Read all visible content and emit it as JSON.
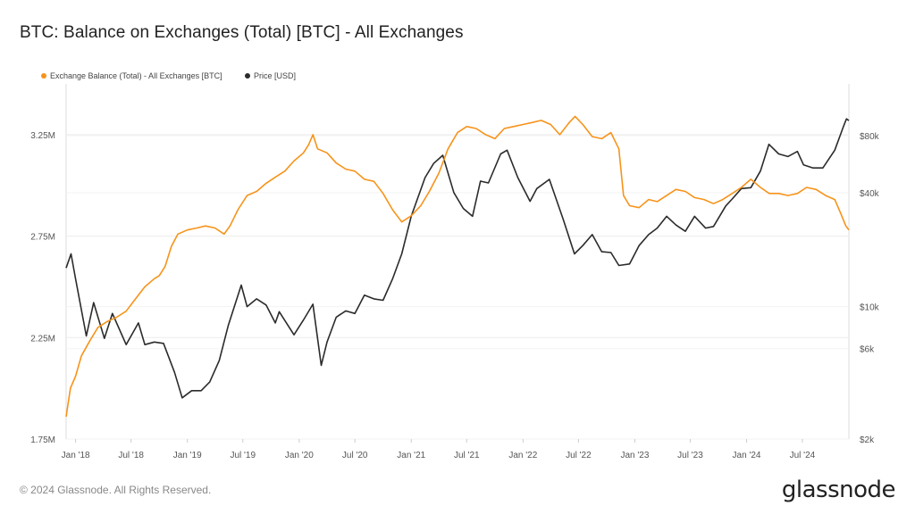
{
  "header": {
    "title": "BTC: Balance on Exchanges (Total) [BTC] - All Exchanges"
  },
  "footer": {
    "copyright": "© 2024 Glassnode. All Rights Reserved.",
    "logo_text": "glassnode"
  },
  "colors": {
    "balance": "#f7931a",
    "price": "#2b2b2b",
    "grid": "#ececec"
  },
  "chart_data": {
    "type": "line",
    "x_range": [
      "2017-12-01",
      "2024-11-30"
    ],
    "x_ticks": [
      {
        "date": "2018-01-01",
        "label": "Jan '18"
      },
      {
        "date": "2018-07-01",
        "label": "Jul '18"
      },
      {
        "date": "2019-01-01",
        "label": "Jan '19"
      },
      {
        "date": "2019-07-01",
        "label": "Jul '19"
      },
      {
        "date": "2020-01-01",
        "label": "Jan '20"
      },
      {
        "date": "2020-07-01",
        "label": "Jul '20"
      },
      {
        "date": "2021-01-01",
        "label": "Jan '21"
      },
      {
        "date": "2021-07-01",
        "label": "Jul '21"
      },
      {
        "date": "2022-01-01",
        "label": "Jan '22"
      },
      {
        "date": "2022-07-01",
        "label": "Jul '22"
      },
      {
        "date": "2023-01-01",
        "label": "Jan '23"
      },
      {
        "date": "2023-07-01",
        "label": "Jul '23"
      },
      {
        "date": "2024-01-01",
        "label": "Jan '24"
      },
      {
        "date": "2024-07-01",
        "label": "Jul '24"
      }
    ],
    "y_left": {
      "min": 1750000,
      "max": 3500000,
      "ticks": [
        {
          "value": 1750000,
          "label": "1.75M"
        },
        {
          "value": 2250000,
          "label": "2.25M"
        },
        {
          "value": 2750000,
          "label": "2.75M"
        },
        {
          "value": 3250000,
          "label": "3.25M"
        }
      ]
    },
    "y_right": {
      "scale": "log",
      "min": 2000,
      "max": 150000,
      "ticks": [
        {
          "value": 2000,
          "label": "$2k"
        },
        {
          "value": 6000,
          "label": "$6k"
        },
        {
          "value": 10000,
          "label": "$10k"
        },
        {
          "value": 40000,
          "label": "$40k"
        },
        {
          "value": 80000,
          "label": "$80k"
        }
      ]
    },
    "legend_position": "top-left",
    "series": [
      {
        "name": "Exchange Balance (Total) - All Exchanges [BTC]",
        "axis": "left",
        "color": "#f7931a",
        "points": [
          [
            "2017-12-01",
            1860000
          ],
          [
            "2017-12-15",
            2000000
          ],
          [
            "2018-01-01",
            2060000
          ],
          [
            "2018-01-20",
            2160000
          ],
          [
            "2018-02-15",
            2230000
          ],
          [
            "2018-03-15",
            2300000
          ],
          [
            "2018-04-15",
            2330000
          ],
          [
            "2018-05-15",
            2350000
          ],
          [
            "2018-06-15",
            2380000
          ],
          [
            "2018-07-15",
            2440000
          ],
          [
            "2018-08-15",
            2500000
          ],
          [
            "2018-09-15",
            2540000
          ],
          [
            "2018-10-01",
            2555000
          ],
          [
            "2018-10-20",
            2600000
          ],
          [
            "2018-11-10",
            2700000
          ],
          [
            "2018-12-01",
            2760000
          ],
          [
            "2019-01-01",
            2780000
          ],
          [
            "2019-02-01",
            2790000
          ],
          [
            "2019-03-01",
            2800000
          ],
          [
            "2019-04-01",
            2790000
          ],
          [
            "2019-05-01",
            2760000
          ],
          [
            "2019-05-20",
            2800000
          ],
          [
            "2019-06-15",
            2880000
          ],
          [
            "2019-07-15",
            2950000
          ],
          [
            "2019-08-15",
            2970000
          ],
          [
            "2019-09-15",
            3010000
          ],
          [
            "2019-10-15",
            3040000
          ],
          [
            "2019-11-15",
            3070000
          ],
          [
            "2019-12-15",
            3120000
          ],
          [
            "2020-01-15",
            3160000
          ],
          [
            "2020-02-01",
            3200000
          ],
          [
            "2020-02-15",
            3250000
          ],
          [
            "2020-03-01",
            3180000
          ],
          [
            "2020-04-01",
            3160000
          ],
          [
            "2020-05-01",
            3110000
          ],
          [
            "2020-06-01",
            3080000
          ],
          [
            "2020-07-01",
            3070000
          ],
          [
            "2020-08-01",
            3030000
          ],
          [
            "2020-09-01",
            3020000
          ],
          [
            "2020-10-01",
            2960000
          ],
          [
            "2020-11-01",
            2880000
          ],
          [
            "2020-12-01",
            2820000
          ],
          [
            "2021-01-01",
            2850000
          ],
          [
            "2021-02-01",
            2900000
          ],
          [
            "2021-03-01",
            2970000
          ],
          [
            "2021-04-01",
            3060000
          ],
          [
            "2021-05-01",
            3180000
          ],
          [
            "2021-06-01",
            3260000
          ],
          [
            "2021-07-01",
            3290000
          ],
          [
            "2021-08-01",
            3280000
          ],
          [
            "2021-09-01",
            3250000
          ],
          [
            "2021-10-01",
            3230000
          ],
          [
            "2021-11-01",
            3280000
          ],
          [
            "2021-12-01",
            3290000
          ],
          [
            "2022-01-01",
            3300000
          ],
          [
            "2022-02-01",
            3310000
          ],
          [
            "2022-03-01",
            3320000
          ],
          [
            "2022-04-01",
            3300000
          ],
          [
            "2022-05-01",
            3250000
          ],
          [
            "2022-06-01",
            3310000
          ],
          [
            "2022-06-20",
            3340000
          ],
          [
            "2022-07-15",
            3300000
          ],
          [
            "2022-08-15",
            3240000
          ],
          [
            "2022-09-15",
            3230000
          ],
          [
            "2022-10-15",
            3260000
          ],
          [
            "2022-11-10",
            3180000
          ],
          [
            "2022-11-25",
            2950000
          ],
          [
            "2022-12-15",
            2900000
          ],
          [
            "2023-01-15",
            2890000
          ],
          [
            "2023-02-15",
            2930000
          ],
          [
            "2023-03-15",
            2920000
          ],
          [
            "2023-04-15",
            2950000
          ],
          [
            "2023-05-15",
            2980000
          ],
          [
            "2023-06-15",
            2970000
          ],
          [
            "2023-07-15",
            2940000
          ],
          [
            "2023-08-15",
            2930000
          ],
          [
            "2023-09-15",
            2910000
          ],
          [
            "2023-10-15",
            2930000
          ],
          [
            "2023-11-15",
            2960000
          ],
          [
            "2023-12-15",
            2990000
          ],
          [
            "2024-01-15",
            3030000
          ],
          [
            "2024-02-15",
            2990000
          ],
          [
            "2024-03-15",
            2960000
          ],
          [
            "2024-04-15",
            2960000
          ],
          [
            "2024-05-15",
            2950000
          ],
          [
            "2024-06-15",
            2960000
          ],
          [
            "2024-07-15",
            2990000
          ],
          [
            "2024-08-15",
            2980000
          ],
          [
            "2024-09-15",
            2950000
          ],
          [
            "2024-10-15",
            2930000
          ],
          [
            "2024-11-01",
            2870000
          ],
          [
            "2024-11-20",
            2800000
          ],
          [
            "2024-11-30",
            2780000
          ]
        ]
      },
      {
        "name": "Price [USD]",
        "axis": "right",
        "color": "#2b2b2b",
        "points": [
          [
            "2017-12-01",
            16000
          ],
          [
            "2017-12-17",
            19000
          ],
          [
            "2018-01-01",
            14000
          ],
          [
            "2018-02-05",
            7000
          ],
          [
            "2018-03-01",
            10500
          ],
          [
            "2018-04-05",
            6800
          ],
          [
            "2018-05-01",
            9200
          ],
          [
            "2018-06-15",
            6300
          ],
          [
            "2018-07-25",
            8200
          ],
          [
            "2018-08-15",
            6300
          ],
          [
            "2018-09-15",
            6500
          ],
          [
            "2018-10-15",
            6400
          ],
          [
            "2018-11-20",
            4500
          ],
          [
            "2018-12-15",
            3300
          ],
          [
            "2019-01-15",
            3600
          ],
          [
            "2019-02-15",
            3600
          ],
          [
            "2019-03-15",
            4000
          ],
          [
            "2019-04-15",
            5200
          ],
          [
            "2019-05-15",
            8000
          ],
          [
            "2019-06-26",
            13000
          ],
          [
            "2019-07-15",
            10000
          ],
          [
            "2019-08-15",
            11000
          ],
          [
            "2019-09-15",
            10200
          ],
          [
            "2019-10-15",
            8200
          ],
          [
            "2019-10-28",
            9400
          ],
          [
            "2019-12-15",
            7100
          ],
          [
            "2020-01-15",
            8500
          ],
          [
            "2020-02-15",
            10300
          ],
          [
            "2020-03-13",
            4900
          ],
          [
            "2020-04-01",
            6500
          ],
          [
            "2020-05-01",
            8800
          ],
          [
            "2020-06-01",
            9500
          ],
          [
            "2020-07-01",
            9200
          ],
          [
            "2020-08-01",
            11500
          ],
          [
            "2020-09-01",
            11000
          ],
          [
            "2020-10-01",
            10800
          ],
          [
            "2020-11-01",
            14000
          ],
          [
            "2020-12-01",
            19000
          ],
          [
            "2021-01-01",
            30000
          ],
          [
            "2021-02-15",
            48000
          ],
          [
            "2021-03-15",
            57000
          ],
          [
            "2021-04-14",
            63000
          ],
          [
            "2021-05-20",
            40000
          ],
          [
            "2021-06-20",
            33000
          ],
          [
            "2021-07-20",
            30000
          ],
          [
            "2021-08-15",
            46000
          ],
          [
            "2021-09-10",
            45000
          ],
          [
            "2021-10-20",
            64000
          ],
          [
            "2021-11-10",
            67000
          ],
          [
            "2021-12-15",
            48000
          ],
          [
            "2022-01-24",
            36000
          ],
          [
            "2022-02-15",
            42000
          ],
          [
            "2022-03-28",
            47000
          ],
          [
            "2022-05-12",
            29000
          ],
          [
            "2022-06-18",
            19000
          ],
          [
            "2022-07-15",
            21000
          ],
          [
            "2022-08-15",
            24000
          ],
          [
            "2022-09-15",
            19500
          ],
          [
            "2022-10-15",
            19300
          ],
          [
            "2022-11-10",
            16500
          ],
          [
            "2022-12-15",
            16800
          ],
          [
            "2023-01-15",
            21000
          ],
          [
            "2023-02-15",
            24000
          ],
          [
            "2023-03-15",
            26000
          ],
          [
            "2023-04-15",
            30000
          ],
          [
            "2023-05-15",
            27000
          ],
          [
            "2023-06-15",
            25000
          ],
          [
            "2023-07-15",
            30000
          ],
          [
            "2023-08-20",
            26000
          ],
          [
            "2023-09-15",
            26500
          ],
          [
            "2023-10-25",
            34000
          ],
          [
            "2023-11-15",
            37000
          ],
          [
            "2023-12-15",
            42000
          ],
          [
            "2024-01-15",
            42500
          ],
          [
            "2024-02-15",
            52000
          ],
          [
            "2024-03-14",
            72000
          ],
          [
            "2024-04-15",
            64000
          ],
          [
            "2024-05-15",
            62000
          ],
          [
            "2024-06-15",
            66000
          ],
          [
            "2024-07-05",
            56000
          ],
          [
            "2024-08-05",
            54000
          ],
          [
            "2024-09-06",
            54000
          ],
          [
            "2024-10-15",
            67000
          ],
          [
            "2024-11-12",
            89000
          ],
          [
            "2024-11-22",
            98000
          ],
          [
            "2024-11-30",
            96000
          ]
        ]
      }
    ]
  }
}
